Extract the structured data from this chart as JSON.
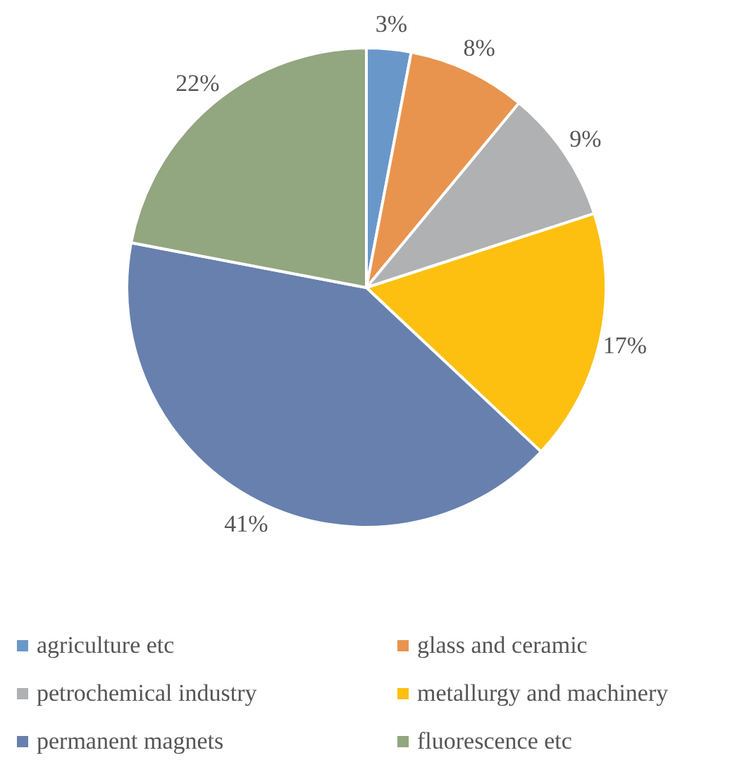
{
  "chart_data": {
    "type": "pie",
    "categories": [
      "agriculture etc",
      "glass and ceramic",
      "petrochemical industry",
      "metallurgy and machinery",
      "permanent magnets",
      "fluorescence etc"
    ],
    "values": [
      3,
      8,
      9,
      17,
      41,
      22
    ],
    "colors": [
      "#6a97c9",
      "#e8944f",
      "#b0b1b3",
      "#fdc010",
      "#6780ae",
      "#92a680"
    ],
    "value_labels": [
      "3%",
      "8%",
      "9%",
      "17%",
      "41%",
      "22%"
    ],
    "legend": "bottom"
  }
}
